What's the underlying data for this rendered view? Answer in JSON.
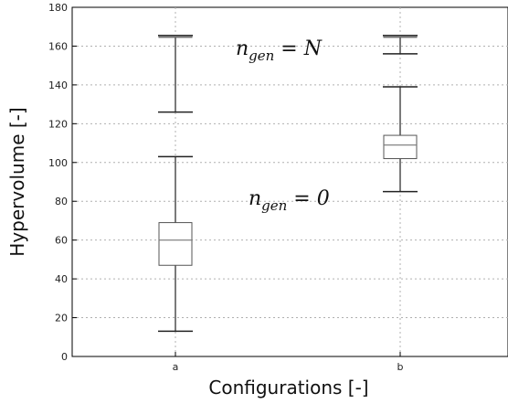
{
  "chart_data": {
    "type": "box",
    "xlabel": "Configurations [-]",
    "ylabel": "Hypervolume [-]",
    "ylim": [
      0,
      180
    ],
    "yticks": [
      0,
      20,
      40,
      60,
      80,
      100,
      120,
      140,
      160,
      180
    ],
    "categories": [
      "a",
      "b"
    ],
    "grid": true,
    "groups": [
      {
        "label": "n_gen = N",
        "annotation": {
          "main": "n",
          "sub": "gen",
          "rest": " = N"
        },
        "boxes": [
          {
            "category": "a",
            "whisker_low": 126,
            "q1": 164.5,
            "median": 165,
            "q3": 165.3,
            "whisker_high": 165.5
          },
          {
            "category": "b",
            "whisker_low": 156,
            "q1": 164.5,
            "median": 165,
            "q3": 165.3,
            "whisker_high": 165.5
          }
        ]
      },
      {
        "label": "n_gen = 0",
        "annotation": {
          "main": "n",
          "sub": "gen",
          "rest": " = 0"
        },
        "boxes": [
          {
            "category": "a",
            "whisker_low": 13,
            "q1": 47,
            "median": 60,
            "q3": 69,
            "whisker_high": 103
          },
          {
            "category": "b",
            "whisker_low": 85,
            "q1": 102,
            "median": 109,
            "q3": 114,
            "whisker_high": 139
          }
        ]
      }
    ]
  }
}
